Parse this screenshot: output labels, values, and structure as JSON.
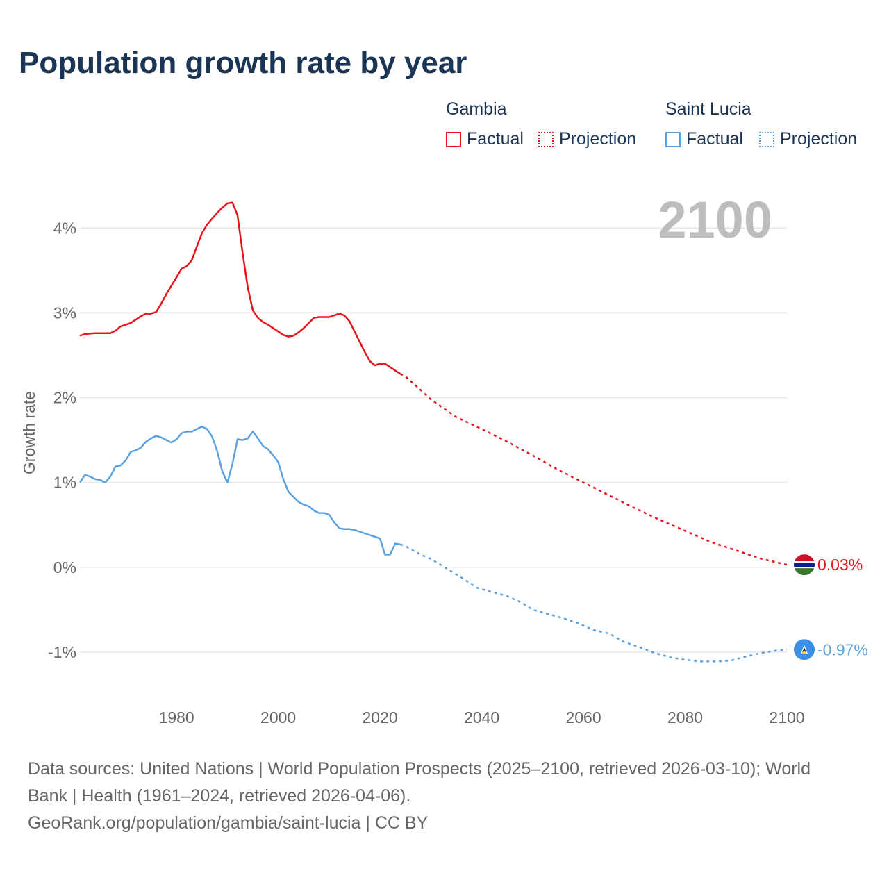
{
  "title": "Population growth rate by year",
  "legend": {
    "gambia": {
      "name": "Gambia",
      "factual": "Factual",
      "projection": "Projection",
      "color": "#e8131b"
    },
    "saint_lucia": {
      "name": "Saint Lucia",
      "factual": "Factual",
      "projection": "Projection",
      "color": "#5aa2e0"
    }
  },
  "year_label": "2100",
  "footer": {
    "line1": "Data sources: United Nations | World Population Prospects (2025–2100, retrieved 2026-03-10); World",
    "line2": "Bank | Health (1961–2024, retrieved 2026-04-06).",
    "line3": "GeoRank.org/population/gambia/saint-lucia | CC BY"
  },
  "chart_data": {
    "type": "line",
    "title": "Population growth rate by year",
    "xlabel": "",
    "ylabel": "Growth rate",
    "xlim": [
      1961,
      2100
    ],
    "ylim": [
      -1.5,
      4.6
    ],
    "x_ticks": [
      1980,
      2000,
      2020,
      2040,
      2060,
      2080,
      2100
    ],
    "y_ticks": [
      -1,
      0,
      1,
      2,
      3,
      4
    ],
    "y_tick_labels": [
      "-1%",
      "0%",
      "1%",
      "2%",
      "3%",
      "4%"
    ],
    "grid": true,
    "series": [
      {
        "name": "Gambia",
        "color": "#e8131b",
        "end_label": "0.03%",
        "factual": [
          [
            1961,
            2.73
          ],
          [
            1962,
            2.75
          ],
          [
            1964,
            2.76
          ],
          [
            1966,
            2.76
          ],
          [
            1967,
            2.76
          ],
          [
            1968,
            2.79
          ],
          [
            1969,
            2.84
          ],
          [
            1971,
            2.88
          ],
          [
            1972,
            2.92
          ],
          [
            1973,
            2.96
          ],
          [
            1974,
            2.99
          ],
          [
            1975,
            2.99
          ],
          [
            1976,
            3.01
          ],
          [
            1977,
            3.11
          ],
          [
            1978,
            3.22
          ],
          [
            1979,
            3.32
          ],
          [
            1980,
            3.42
          ],
          [
            1981,
            3.52
          ],
          [
            1982,
            3.55
          ],
          [
            1983,
            3.62
          ],
          [
            1984,
            3.78
          ],
          [
            1985,
            3.94
          ],
          [
            1986,
            4.04
          ],
          [
            1987,
            4.11
          ],
          [
            1988,
            4.18
          ],
          [
            1989,
            4.24
          ],
          [
            1990,
            4.29
          ],
          [
            1991,
            4.3
          ],
          [
            1992,
            4.15
          ],
          [
            1993,
            3.7
          ],
          [
            1994,
            3.3
          ],
          [
            1995,
            3.03
          ],
          [
            1996,
            2.94
          ],
          [
            1997,
            2.89
          ],
          [
            1998,
            2.86
          ],
          [
            1999,
            2.82
          ],
          [
            2000,
            2.78
          ],
          [
            2001,
            2.74
          ],
          [
            2002,
            2.72
          ],
          [
            2003,
            2.73
          ],
          [
            2004,
            2.77
          ],
          [
            2005,
            2.82
          ],
          [
            2006,
            2.88
          ],
          [
            2007,
            2.94
          ],
          [
            2008,
            2.95
          ],
          [
            2009,
            2.95
          ],
          [
            2010,
            2.95
          ],
          [
            2011,
            2.97
          ],
          [
            2012,
            2.99
          ],
          [
            2013,
            2.97
          ],
          [
            2014,
            2.9
          ],
          [
            2015,
            2.78
          ],
          [
            2016,
            2.66
          ],
          [
            2017,
            2.54
          ],
          [
            2018,
            2.43
          ],
          [
            2019,
            2.38
          ],
          [
            2020,
            2.4
          ],
          [
            2021,
            2.4
          ],
          [
            2022,
            2.36
          ],
          [
            2023,
            2.32
          ],
          [
            2024,
            2.28
          ]
        ],
        "projection": [
          [
            2024,
            2.28
          ],
          [
            2025,
            2.25
          ],
          [
            2028,
            2.09
          ],
          [
            2030,
            1.98
          ],
          [
            2035,
            1.77
          ],
          [
            2040,
            1.63
          ],
          [
            2045,
            1.48
          ],
          [
            2050,
            1.32
          ],
          [
            2055,
            1.15
          ],
          [
            2060,
            1.0
          ],
          [
            2065,
            0.85
          ],
          [
            2070,
            0.7
          ],
          [
            2075,
            0.56
          ],
          [
            2080,
            0.43
          ],
          [
            2085,
            0.3
          ],
          [
            2090,
            0.2
          ],
          [
            2095,
            0.1
          ],
          [
            2100,
            0.03
          ]
        ]
      },
      {
        "name": "Saint Lucia",
        "color": "#5aa2e0",
        "end_label": "-0.97%",
        "factual": [
          [
            1961,
            1.0
          ],
          [
            1962,
            1.09
          ],
          [
            1963,
            1.07
          ],
          [
            1964,
            1.04
          ],
          [
            1965,
            1.03
          ],
          [
            1966,
            1.0
          ],
          [
            1967,
            1.07
          ],
          [
            1968,
            1.19
          ],
          [
            1969,
            1.2
          ],
          [
            1970,
            1.26
          ],
          [
            1971,
            1.36
          ],
          [
            1972,
            1.38
          ],
          [
            1973,
            1.41
          ],
          [
            1974,
            1.48
          ],
          [
            1975,
            1.52
          ],
          [
            1976,
            1.55
          ],
          [
            1977,
            1.53
          ],
          [
            1978,
            1.5
          ],
          [
            1979,
            1.47
          ],
          [
            1980,
            1.51
          ],
          [
            1981,
            1.58
          ],
          [
            1982,
            1.6
          ],
          [
            1983,
            1.6
          ],
          [
            1984,
            1.63
          ],
          [
            1985,
            1.66
          ],
          [
            1986,
            1.63
          ],
          [
            1987,
            1.54
          ],
          [
            1988,
            1.37
          ],
          [
            1989,
            1.13
          ],
          [
            1990,
            1.0
          ],
          [
            1991,
            1.22
          ],
          [
            1992,
            1.51
          ],
          [
            1993,
            1.5
          ],
          [
            1994,
            1.52
          ],
          [
            1995,
            1.6
          ],
          [
            1996,
            1.52
          ],
          [
            1997,
            1.43
          ],
          [
            1998,
            1.39
          ],
          [
            1999,
            1.32
          ],
          [
            2000,
            1.24
          ],
          [
            2001,
            1.04
          ],
          [
            2002,
            0.89
          ],
          [
            2003,
            0.83
          ],
          [
            2004,
            0.77
          ],
          [
            2005,
            0.74
          ],
          [
            2006,
            0.72
          ],
          [
            2007,
            0.67
          ],
          [
            2008,
            0.64
          ],
          [
            2009,
            0.64
          ],
          [
            2010,
            0.62
          ],
          [
            2011,
            0.53
          ],
          [
            2012,
            0.46
          ],
          [
            2013,
            0.45
          ],
          [
            2014,
            0.45
          ],
          [
            2015,
            0.44
          ],
          [
            2016,
            0.42
          ],
          [
            2017,
            0.4
          ],
          [
            2018,
            0.38
          ],
          [
            2019,
            0.36
          ],
          [
            2020,
            0.34
          ],
          [
            2021,
            0.15
          ],
          [
            2022,
            0.15
          ],
          [
            2023,
            0.28
          ],
          [
            2024,
            0.27
          ]
        ],
        "projection": [
          [
            2024,
            0.27
          ],
          [
            2025,
            0.25
          ],
          [
            2028,
            0.15
          ],
          [
            2030,
            0.1
          ],
          [
            2033,
            -0.01
          ],
          [
            2036,
            -0.12
          ],
          [
            2039,
            -0.24
          ],
          [
            2042,
            -0.29
          ],
          [
            2045,
            -0.34
          ],
          [
            2048,
            -0.42
          ],
          [
            2050,
            -0.5
          ],
          [
            2053,
            -0.55
          ],
          [
            2056,
            -0.6
          ],
          [
            2059,
            -0.66
          ],
          [
            2062,
            -0.74
          ],
          [
            2065,
            -0.78
          ],
          [
            2068,
            -0.88
          ],
          [
            2071,
            -0.94
          ],
          [
            2074,
            -1.01
          ],
          [
            2077,
            -1.06
          ],
          [
            2080,
            -1.09
          ],
          [
            2083,
            -1.11
          ],
          [
            2086,
            -1.11
          ],
          [
            2089,
            -1.1
          ],
          [
            2092,
            -1.05
          ],
          [
            2095,
            -1.01
          ],
          [
            2098,
            -0.98
          ],
          [
            2100,
            -0.97
          ]
        ]
      }
    ]
  }
}
